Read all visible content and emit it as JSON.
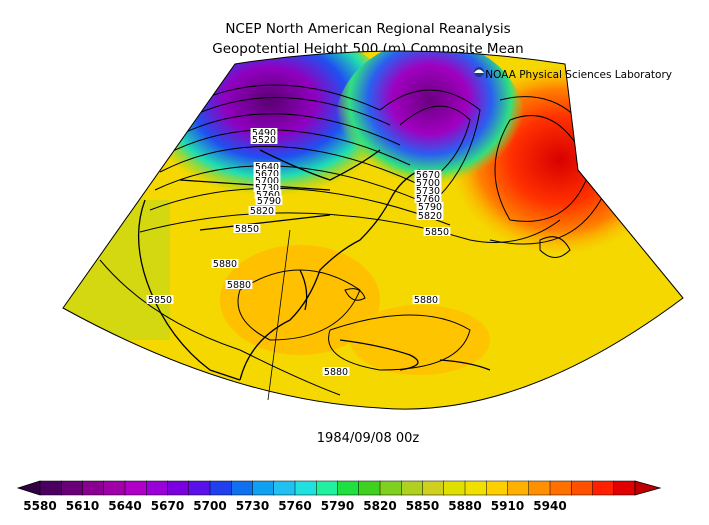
{
  "header": {
    "title_line1": "NCEP North American Regional Reanalysis",
    "title_line2": "Geopotential Height 500 (m) Composite Mean",
    "credit": "NOAA Physical Sciences Laboratory"
  },
  "map": {
    "date_label": "1984/09/08 00z",
    "contour_labels": [
      {
        "text": "5490"
      },
      {
        "text": "5520"
      },
      {
        "text": "5640"
      },
      {
        "text": "5670"
      },
      {
        "text": "5700"
      },
      {
        "text": "5730"
      },
      {
        "text": "5760"
      },
      {
        "text": "5790"
      },
      {
        "text": "5820"
      },
      {
        "text": "5850"
      },
      {
        "text": "5880"
      },
      {
        "text": "5880"
      },
      {
        "text": "5850"
      },
      {
        "text": "5880"
      },
      {
        "text": "5880"
      },
      {
        "text": "5670"
      },
      {
        "text": "5700"
      },
      {
        "text": "5730"
      },
      {
        "text": "5760"
      },
      {
        "text": "5790"
      },
      {
        "text": "5820"
      },
      {
        "text": "5850"
      }
    ]
  },
  "colorbar": {
    "tick_labels": [
      "5580",
      "5610",
      "5640",
      "5670",
      "5700",
      "5730",
      "5760",
      "5790",
      "5820",
      "5850",
      "5880",
      "5910",
      "5940"
    ],
    "colors": [
      "#4a0060",
      "#6a0078",
      "#8a0090",
      "#a000a8",
      "#b000c8",
      "#9a00d8",
      "#7a00e0",
      "#5a10e8",
      "#2040f0",
      "#1070f0",
      "#10a0f0",
      "#20c0f0",
      "#20e0e0",
      "#20f0a0",
      "#20e040",
      "#40d020",
      "#80d020",
      "#b0d020",
      "#d0d020",
      "#e0e000",
      "#f0e000",
      "#ffd000",
      "#ffb000",
      "#ff9000",
      "#ff7000",
      "#ff5000",
      "#ff2000",
      "#e00000"
    ],
    "left_arrow_color": "#300040",
    "right_arrow_color": "#c00000"
  }
}
